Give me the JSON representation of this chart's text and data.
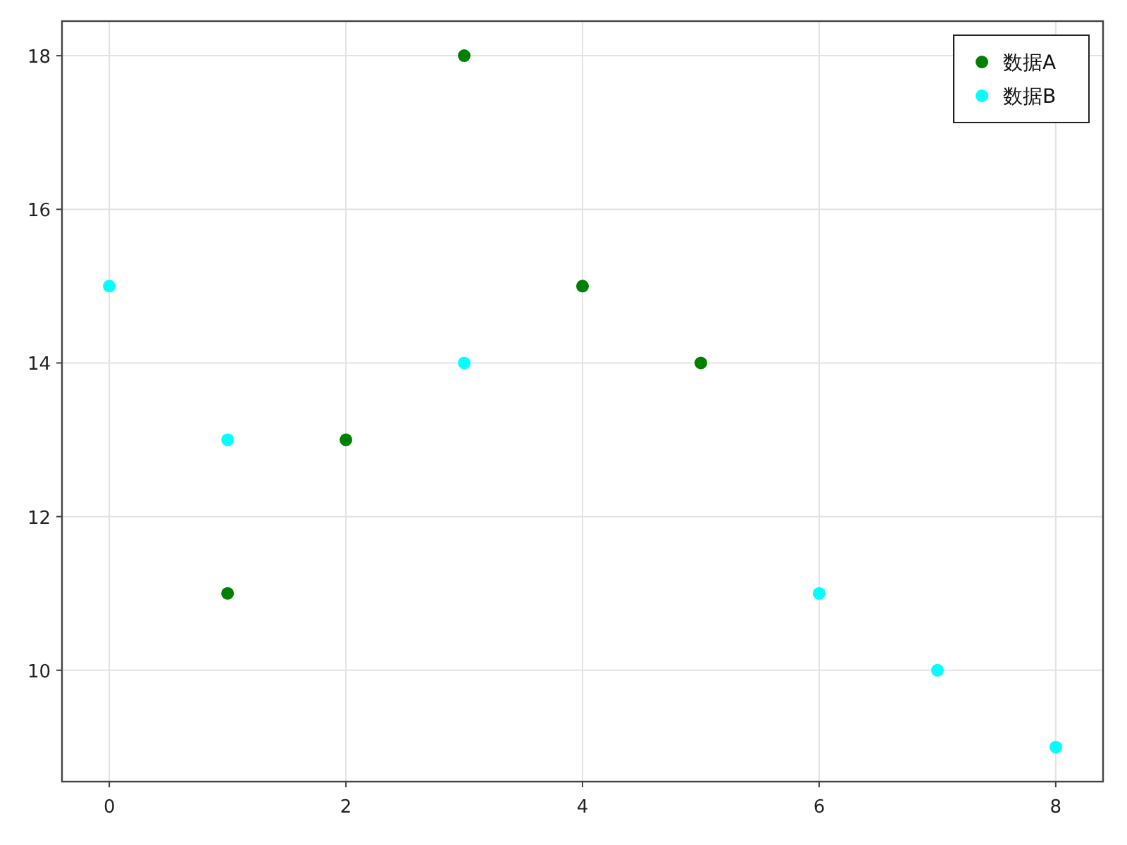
{
  "chart_data": {
    "type": "scatter",
    "xlim": [
      -0.4,
      8.4
    ],
    "ylim": [
      8.55,
      18.45
    ],
    "xticks": [
      0,
      2,
      4,
      6,
      8
    ],
    "yticks": [
      10,
      12,
      14,
      16,
      18
    ],
    "grid": true,
    "legend": "top right",
    "marker": "circle",
    "series": [
      {
        "name": "数据A",
        "color": "#008000",
        "x": [
          1,
          2,
          3,
          4,
          5
        ],
        "values": [
          11,
          13,
          18,
          15,
          14
        ]
      },
      {
        "name": "数据B",
        "color": "#00ffff",
        "x": [
          0,
          1,
          3,
          6,
          7,
          8
        ],
        "values": [
          15,
          13,
          14,
          11,
          10,
          9
        ]
      }
    ]
  }
}
